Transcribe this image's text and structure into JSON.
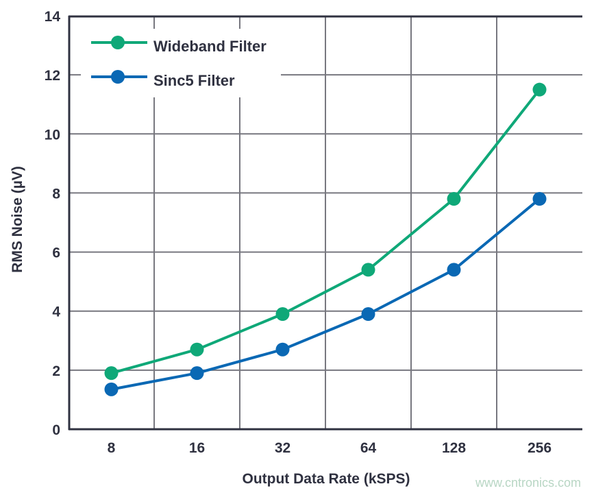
{
  "chart_data": {
    "type": "line",
    "xlabel": "Output Data Rate (kSPS)",
    "ylabel": "RMS Noise (µV)",
    "categories": [
      "8",
      "16",
      "32",
      "64",
      "128",
      "256"
    ],
    "ylim": [
      0,
      14
    ],
    "yticks": [
      "0",
      "2",
      "4",
      "6",
      "8",
      "10",
      "12",
      "14"
    ],
    "grid": true,
    "legend_position": "top-left",
    "series": [
      {
        "name": "Wideband Filter",
        "color": "#0fa878",
        "values": [
          1.9,
          2.7,
          3.9,
          5.4,
          7.8,
          11.5
        ]
      },
      {
        "name": "Sinc5 Filter",
        "color": "#0a68b4",
        "values": [
          1.35,
          1.9,
          2.7,
          3.9,
          5.4,
          7.8
        ]
      }
    ]
  },
  "watermark": "www.cntronics.com"
}
